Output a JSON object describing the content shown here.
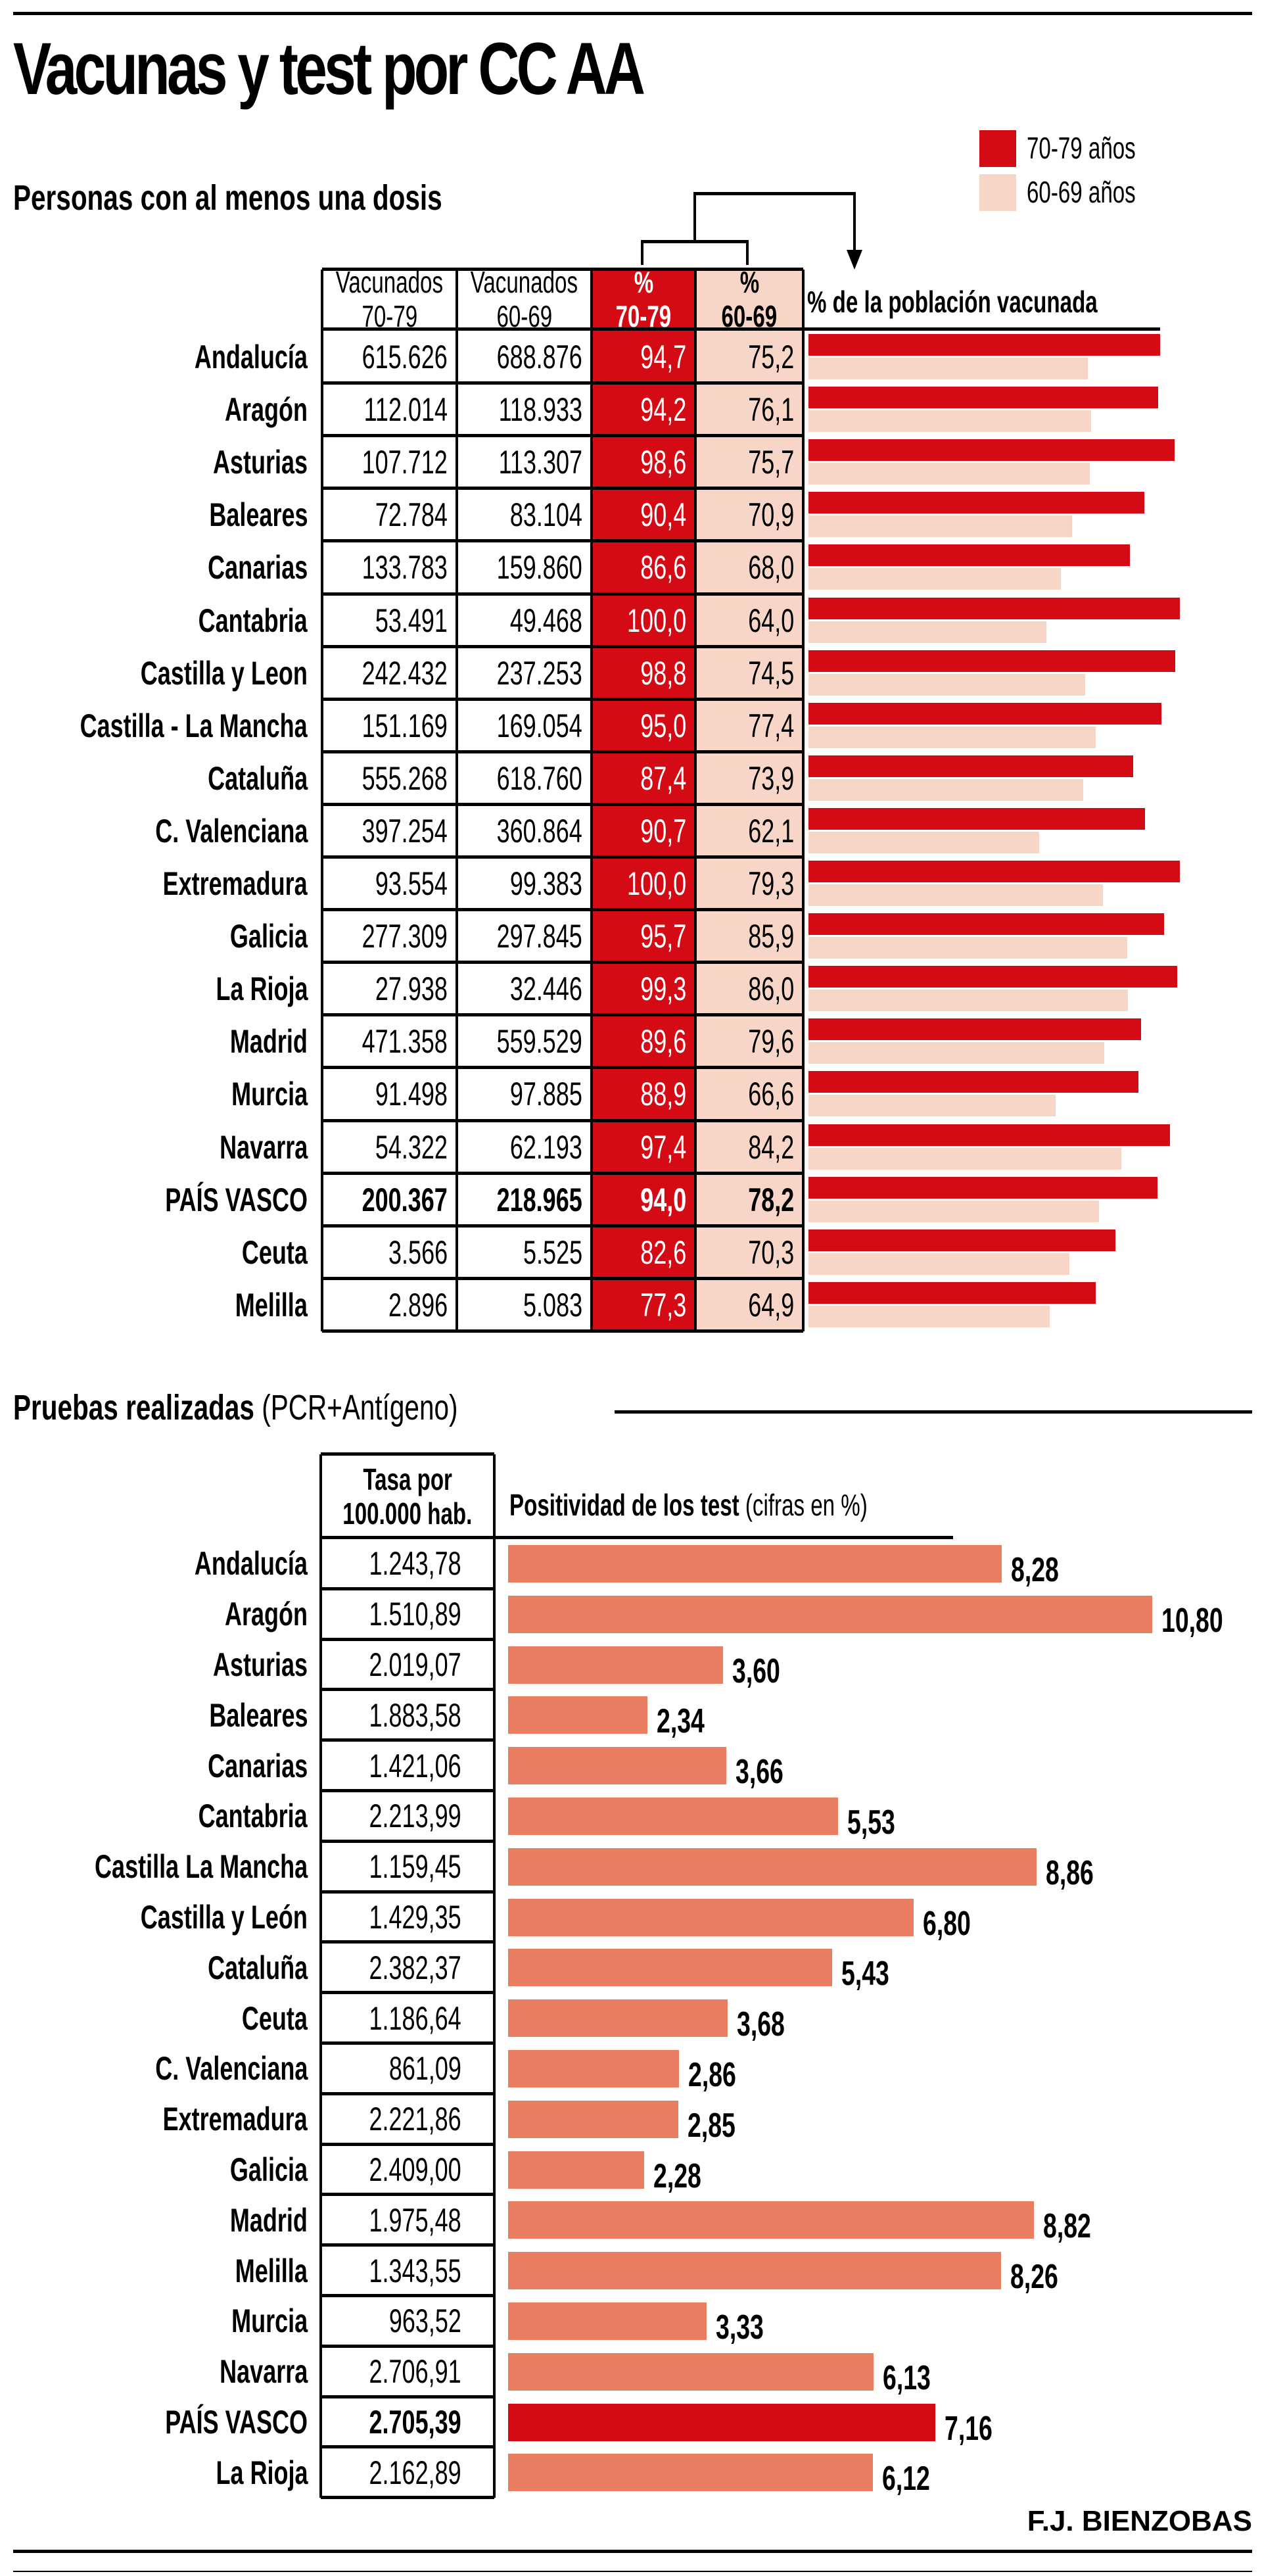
{
  "title": "Vacunas y test por CC AA",
  "legend": [
    {
      "label": "70-79 años",
      "color": "#d40a14"
    },
    {
      "label": "60-69 años",
      "color": "#f7d6c7"
    }
  ],
  "credit": "F.J. BIENZOBAS",
  "section1": {
    "title": "Personas con al menos una dosis",
    "headers": {
      "vac7079": [
        "Vacunados",
        "70-79"
      ],
      "vac6069": [
        "Vacunados",
        "60-69"
      ],
      "pct7079": [
        "%",
        "70-79"
      ],
      "pct6069": [
        "%",
        "60-69"
      ],
      "bars": "% de la población vacunada"
    }
  },
  "section2": {
    "title_bold": "Pruebas realizadas",
    "title_light": "(PCR+Antígeno)",
    "headers": {
      "tasa": [
        "Tasa por",
        "100.000 hab."
      ],
      "bars_bold": "Positividad de los test",
      "bars_light": "(cifras en %)"
    }
  },
  "colors": {
    "red": "#d40a14",
    "pink": "#f7d6c7",
    "salmon": "#e97e63",
    "highlight": "#d40a14"
  },
  "chart_data": [
    {
      "type": "bar",
      "title": "Personas con al menos una dosis",
      "xlabel": "% de la población vacunada",
      "xlim": [
        0,
        100
      ],
      "categories": [
        "Andalucía",
        "Aragón",
        "Asturias",
        "Baleares",
        "Canarias",
        "Cantabria",
        "Castilla y Leon",
        "Castilla - La Mancha",
        "Cataluña",
        "C. Valenciana",
        "Extremadura",
        "Galicia",
        "La Rioja",
        "Madrid",
        "Murcia",
        "Navarra",
        "PAÍS VASCO",
        "Ceuta",
        "Melilla"
      ],
      "highlight": "PAÍS VASCO",
      "table": {
        "vacunados_70_79": [
          "615.626",
          "112.014",
          "107.712",
          "72.784",
          "133.783",
          "53.491",
          "242.432",
          "151.169",
          "555.268",
          "397.254",
          "93.554",
          "277.309",
          "27.938",
          "471.358",
          "91.498",
          "54.322",
          "200.367",
          "3.566",
          "2.896"
        ],
        "vacunados_60_69": [
          "688.876",
          "118.933",
          "113.307",
          "83.104",
          "159.860",
          "49.468",
          "237.253",
          "169.054",
          "618.760",
          "360.864",
          "99.383",
          "297.845",
          "32.446",
          "559.529",
          "97.885",
          "62.193",
          "218.965",
          "5.525",
          "5.083"
        ],
        "pct_70_79_text": [
          "94,7",
          "94,2",
          "98,6",
          "90,4",
          "86,6",
          "100,0",
          "98,8",
          "95,0",
          "87,4",
          "90,7",
          "100,0",
          "95,7",
          "99,3",
          "89,6",
          "88,9",
          "97,4",
          "94,0",
          "82,6",
          "77,3"
        ],
        "pct_60_69_text": [
          "75,2",
          "76,1",
          "75,7",
          "70,9",
          "68,0",
          "64,0",
          "74,5",
          "77,4",
          "73,9",
          "62,1",
          "79,3",
          "85,9",
          "86,0",
          "79,6",
          "66,6",
          "84,2",
          "78,2",
          "70,3",
          "64,9"
        ]
      },
      "series": [
        {
          "name": "70-79 años",
          "values": [
            94.7,
            94.2,
            98.6,
            90.4,
            86.6,
            100.0,
            98.8,
            95.0,
            87.4,
            90.7,
            100.0,
            95.7,
            99.3,
            89.6,
            88.9,
            97.4,
            94.0,
            82.6,
            77.3
          ]
        },
        {
          "name": "60-69 años",
          "values": [
            75.2,
            76.1,
            75.7,
            70.9,
            68.0,
            64.0,
            74.5,
            77.4,
            73.9,
            62.1,
            79.3,
            85.9,
            86.0,
            79.6,
            66.6,
            84.2,
            78.2,
            70.3,
            64.9
          ]
        }
      ],
      "legend": "top-right",
      "grid": false
    },
    {
      "type": "bar",
      "title": "Pruebas realizadas (PCR+Antígeno)",
      "xlabel": "Positividad de los test (cifras en %)",
      "xlim": [
        0,
        10.8
      ],
      "categories": [
        "Andalucía",
        "Aragón",
        "Asturias",
        "Baleares",
        "Canarias",
        "Cantabria",
        "Castilla La Mancha",
        "Castilla y León",
        "Cataluña",
        "Ceuta",
        "C. Valenciana",
        "Extremadura",
        "Galicia",
        "Madrid",
        "Melilla",
        "Murcia",
        "Navarra",
        "PAÍS VASCO",
        "La Rioja"
      ],
      "highlight": "PAÍS VASCO",
      "table": {
        "tasa_por_100000": [
          "1.243,78",
          "1.510,89",
          "2.019,07",
          "1.883,58",
          "1.421,06",
          "2.213,99",
          "1.159,45",
          "1.429,35",
          "2.382,37",
          "1.186,64",
          "861,09",
          "2.221,86",
          "2.409,00",
          "1.975,48",
          "1.343,55",
          "963,52",
          "2.706,91",
          "2.705,39",
          "2.162,89"
        ]
      },
      "value_labels": [
        "8,28",
        "10,80",
        "3,60",
        "2,34",
        "3,66",
        "5,53",
        "8,86",
        "6,80",
        "5,43",
        "3,68",
        "2,86",
        "2,85",
        "2,28",
        "8,82",
        "8,26",
        "3,33",
        "6,13",
        "7,16",
        "6,12"
      ],
      "values": [
        8.28,
        10.8,
        3.6,
        2.34,
        3.66,
        5.53,
        8.86,
        6.8,
        5.43,
        3.68,
        2.86,
        2.85,
        2.28,
        8.82,
        8.26,
        3.33,
        6.13,
        7.16,
        6.12
      ],
      "grid": false
    }
  ]
}
